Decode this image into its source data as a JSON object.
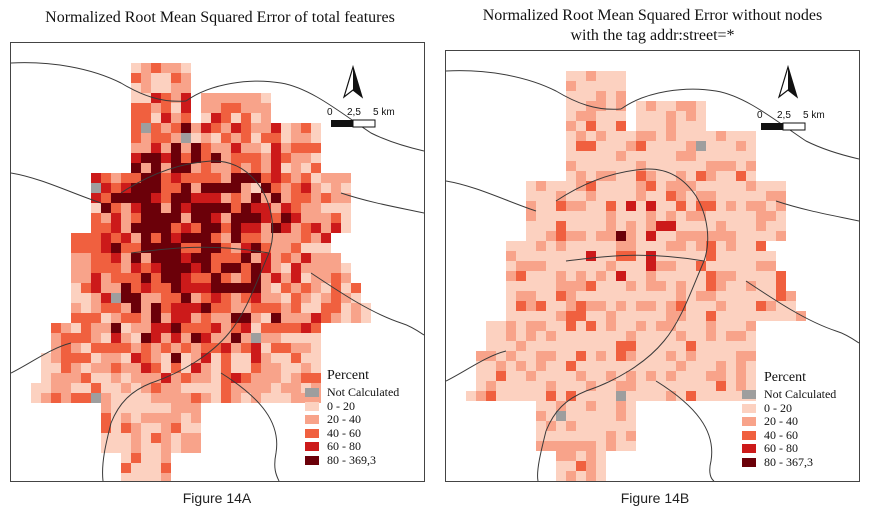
{
  "panels": [
    {
      "id": "A",
      "title_lines": [
        "Normalized Root Mean Squared Error of total features"
      ],
      "caption": "Figure 14A",
      "legend": {
        "title": "Percent",
        "items": [
          {
            "label": "Not Calculated",
            "color": "#9e9e9e"
          },
          {
            "label": "0 - 20",
            "color": "#fcd1c0"
          },
          {
            "label": "20 - 40",
            "color": "#f8a38a"
          },
          {
            "label": "40 - 60",
            "color": "#f0603f"
          },
          {
            "label": "60 - 80",
            "color": "#cc1a1a"
          },
          {
            "label": "80 - 369,3",
            "color": "#6b0009"
          }
        ]
      },
      "scale": {
        "ticks": [
          "0",
          "2,5",
          "5 km"
        ]
      },
      "north_arrow": "north-arrow-icon"
    },
    {
      "id": "B",
      "title_lines": [
        "Normalized Root Mean Squared Error without nodes",
        "with the tag addr:street=*"
      ],
      "caption": "Figure 14B",
      "legend": {
        "title": "Percent",
        "items": [
          {
            "label": "Not Calculated",
            "color": "#9e9e9e"
          },
          {
            "label": "0 - 20",
            "color": "#fcd1c0"
          },
          {
            "label": "20 - 40",
            "color": "#f8a38a"
          },
          {
            "label": "40 - 60",
            "color": "#f0603f"
          },
          {
            "label": "60 - 80",
            "color": "#cc1a1a"
          },
          {
            "label": "80 - 367,3",
            "color": "#6b0009"
          }
        ]
      },
      "scale": {
        "ticks": [
          "0",
          "2,5",
          "5 km"
        ]
      },
      "north_arrow": "north-arrow-icon"
    }
  ]
}
